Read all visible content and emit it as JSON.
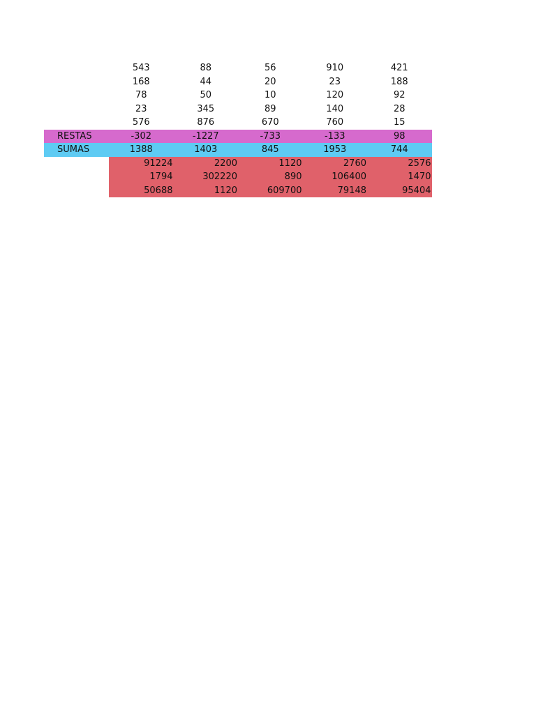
{
  "data_rows": [
    [
      "543",
      "88",
      "56",
      "910",
      "421"
    ],
    [
      "168",
      "44",
      "20",
      "23",
      "188"
    ],
    [
      "78",
      "50",
      "10",
      "120",
      "92"
    ],
    [
      "23",
      "345",
      "89",
      "140",
      "28"
    ],
    [
      "576",
      "876",
      "670",
      "760",
      "15"
    ]
  ],
  "restas": {
    "label": "RESTAS",
    "values": [
      "-302",
      "-1227",
      "-733",
      "-133",
      "98"
    ]
  },
  "sumas": {
    "label": "SUMAS",
    "values": [
      "1388",
      "1403",
      "845",
      "1953",
      "744"
    ]
  },
  "product_rows": [
    [
      "91224",
      "2200",
      "1120",
      "2760",
      "2576"
    ],
    [
      "1794",
      "302220",
      "890",
      "106400",
      "1470"
    ],
    [
      "50688",
      "1120",
      "609700",
      "79148",
      "95404"
    ]
  ],
  "colors": {
    "restas": "#d66acd",
    "sumas": "#5ecbf3",
    "products": "#e0616a"
  }
}
